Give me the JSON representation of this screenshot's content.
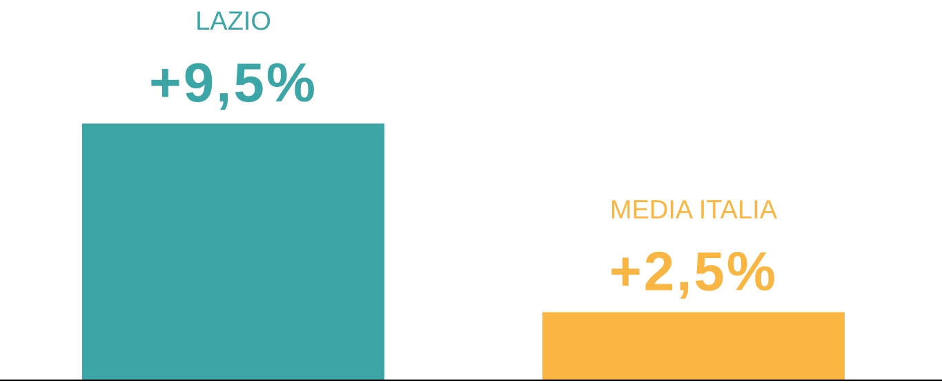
{
  "chart_data": {
    "type": "bar",
    "categories": [
      "LAZIO",
      "MEDIA ITALIA"
    ],
    "series": [
      {
        "colors": [
          "#3ca5a5",
          "#f9b642"
        ],
        "values": [
          9.5,
          2.5
        ],
        "value_labels": [
          "+9,5%",
          "+2,5%"
        ]
      }
    ]
  }
}
